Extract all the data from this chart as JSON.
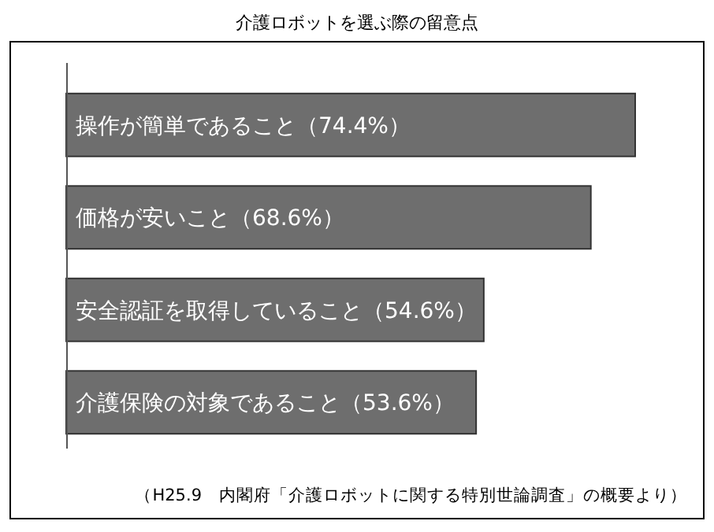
{
  "chart_data": {
    "type": "bar",
    "orientation": "horizontal",
    "title": "介護ロボットを選ぶ際の留意点",
    "categories": [
      "操作が簡単であること",
      "価格が安いこと",
      "安全認証を取得していること",
      "介護保険の対象であること"
    ],
    "values": [
      74.4,
      68.6,
      54.6,
      53.6
    ],
    "value_labels": [
      "（74.4%）",
      "（68.6%）",
      "（54.6%）",
      "（53.6%）"
    ],
    "color": "#6e6e6e",
    "annotations": [
      "（H25.9　内閣府「介護ロボットに関する特別世論調査」の概要より）"
    ]
  }
}
